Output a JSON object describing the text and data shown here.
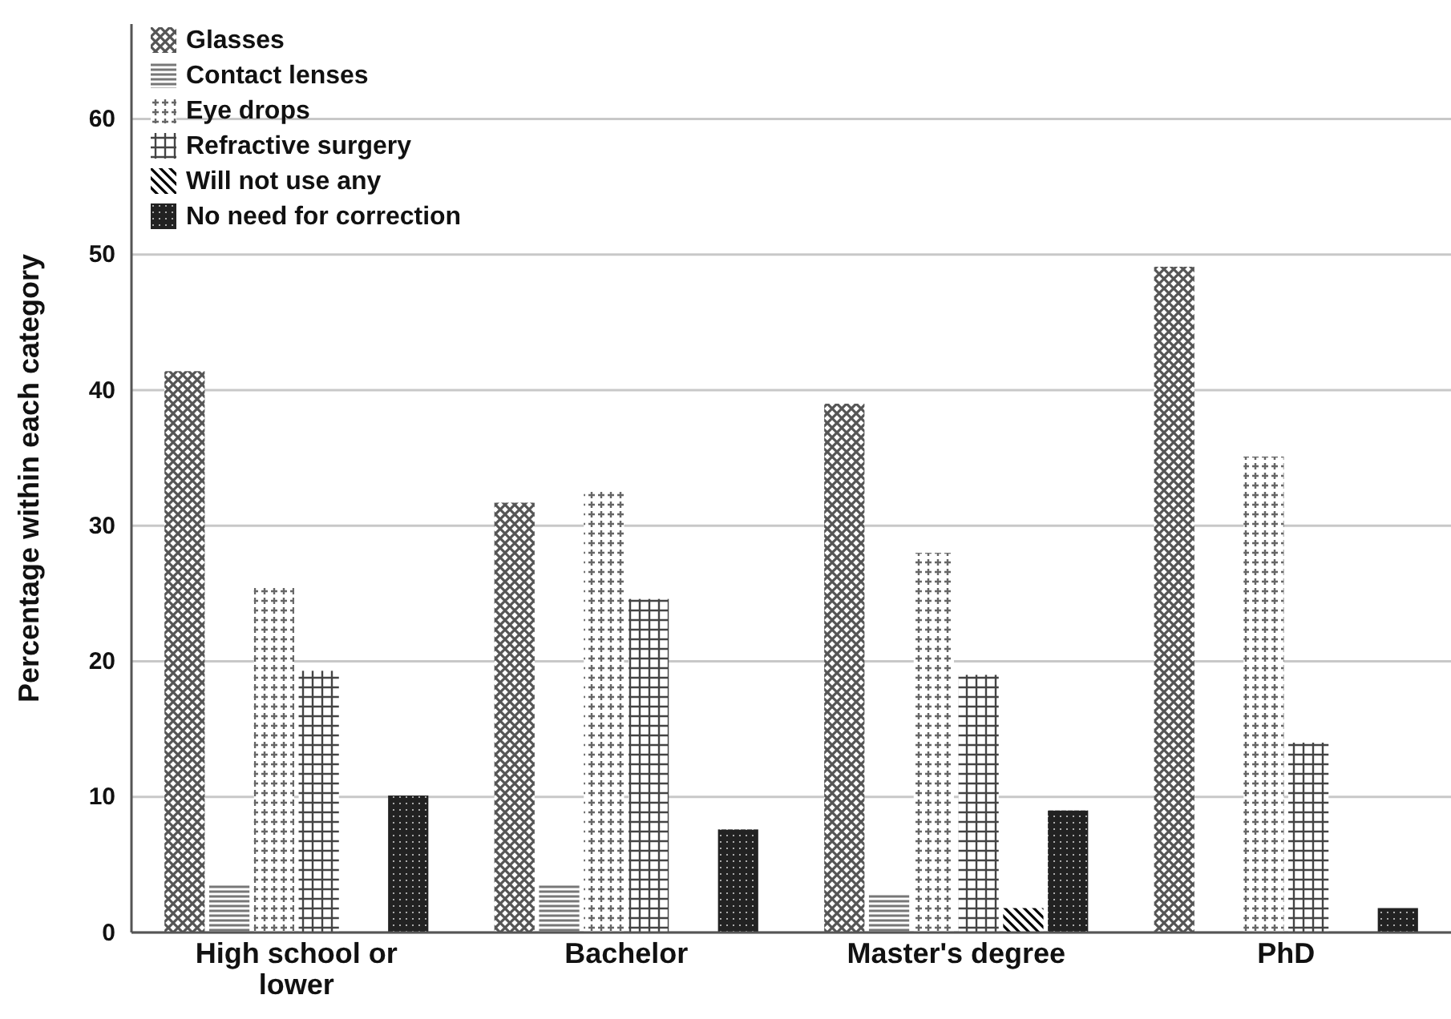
{
  "chart_data": {
    "type": "bar",
    "ylabel": "Percentage within each category",
    "categories": [
      "High school or lower",
      "Bachelor",
      "Master's degree",
      "PhD"
    ],
    "series": [
      {
        "name": "Glasses",
        "color": "#555555",
        "values": [
          41.4,
          31.7,
          39.0,
          49.1
        ]
      },
      {
        "name": "Contact lenses",
        "color": "#777777",
        "values": [
          3.5,
          3.5,
          2.8,
          null
        ]
      },
      {
        "name": "Eye drops",
        "color": "#666666",
        "values": [
          25.5,
          32.5,
          28.0,
          35.1
        ]
      },
      {
        "name": "Refractive surgery",
        "color": "#444444",
        "values": [
          19.3,
          24.6,
          19.0,
          14.0
        ]
      },
      {
        "name": "Will not use any",
        "color": "#000000",
        "values": [
          null,
          null,
          1.8,
          null
        ]
      },
      {
        "name": "No need for correction",
        "color": "#222222",
        "values": [
          10.1,
          7.6,
          9.0,
          1.8
        ]
      }
    ],
    "ylim": [
      0,
      67
    ],
    "yticks": [
      0,
      10,
      20,
      30,
      40,
      50,
      60
    ],
    "grid": "y",
    "legend": "top left"
  }
}
